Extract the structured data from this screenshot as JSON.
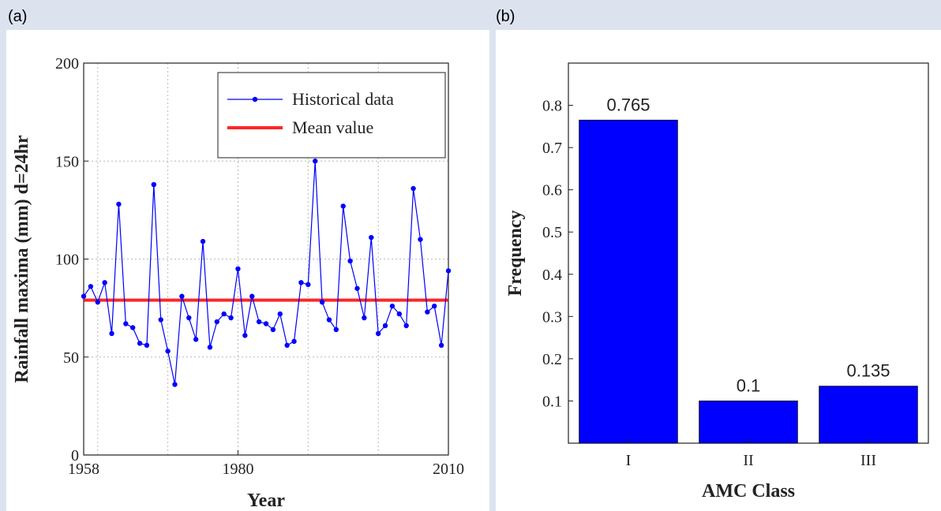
{
  "panels": {
    "a_label": "(a)",
    "b_label": "(b)"
  },
  "chart_data": [
    {
      "type": "line",
      "xlabel": "Year",
      "ylabel": "Rainfall maxima (mm) d=24hr",
      "xlim": [
        1958,
        2010
      ],
      "ylim": [
        0,
        200
      ],
      "x_ticks": [
        1958,
        1980,
        2010
      ],
      "y_ticks": [
        0,
        50,
        100,
        150,
        200
      ],
      "x_grid_lines": [
        1958,
        1960,
        1970,
        1980,
        1990,
        2000,
        2010
      ],
      "grid": true,
      "legend": "top-right",
      "series": [
        {
          "name": "Historical data",
          "color": "#0000ff",
          "x": [
            1958,
            1959,
            1960,
            1961,
            1962,
            1963,
            1964,
            1965,
            1966,
            1967,
            1968,
            1969,
            1970,
            1971,
            1972,
            1973,
            1974,
            1975,
            1976,
            1977,
            1978,
            1979,
            1980,
            1981,
            1982,
            1983,
            1984,
            1985,
            1986,
            1987,
            1988,
            1989,
            1990,
            1991,
            1992,
            1993,
            1994,
            1995,
            1996,
            1997,
            1998,
            1999,
            2000,
            2001,
            2002,
            2003,
            2004,
            2005,
            2006,
            2007,
            2008,
            2009,
            2010
          ],
          "values": [
            81,
            86,
            78,
            88,
            62,
            128,
            67,
            65,
            57,
            56,
            138,
            69,
            53,
            36,
            81,
            70,
            59,
            109,
            55,
            68,
            72,
            70,
            95,
            61,
            81,
            68,
            67,
            64,
            72,
            56,
            58,
            88,
            87,
            150,
            78,
            69,
            64,
            127,
            99,
            85,
            70,
            111,
            62,
            66,
            76,
            72,
            66,
            136,
            110,
            73,
            76,
            56,
            94
          ]
        },
        {
          "name": "Mean value",
          "color": "#ff0000",
          "x": [
            1958,
            2010
          ],
          "values": [
            79,
            79
          ]
        }
      ]
    },
    {
      "type": "bar",
      "xlabel": "AMC Class",
      "ylabel": "Frequency",
      "categories": [
        "I",
        "II",
        "III"
      ],
      "values": [
        0.765,
        0.1,
        0.135
      ],
      "value_labels": [
        "0.765",
        "0.1",
        "0.135"
      ],
      "ylim": [
        0,
        0.9
      ],
      "y_ticks": [
        0.1,
        0.2,
        0.3,
        0.4,
        0.5,
        0.6,
        0.7,
        0.8
      ],
      "y_tick_labels": [
        "0.1",
        "0.2",
        "0.3",
        "0.4",
        "0.5",
        "0.6",
        "0.7",
        "0.8"
      ],
      "bar_color": "#0000ff"
    }
  ]
}
